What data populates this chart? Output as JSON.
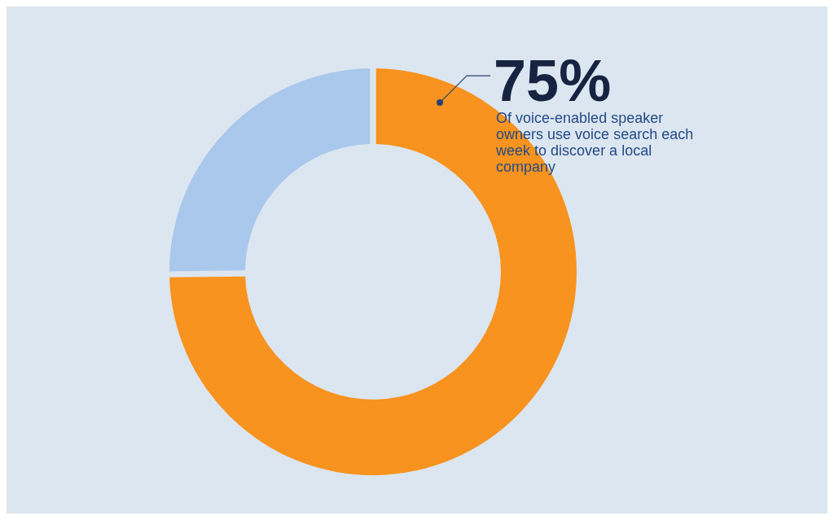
{
  "chart_data": {
    "type": "donut",
    "categories": [
      null,
      null
    ],
    "values": [
      75,
      25
    ],
    "colors": [
      "#f7931e",
      "#a9c8ec"
    ],
    "value_labels": [
      "75%",
      null
    ],
    "annotations": [
      "Of voice-enabled speaker owners use voice search each week to discover a local company"
    ]
  }
}
